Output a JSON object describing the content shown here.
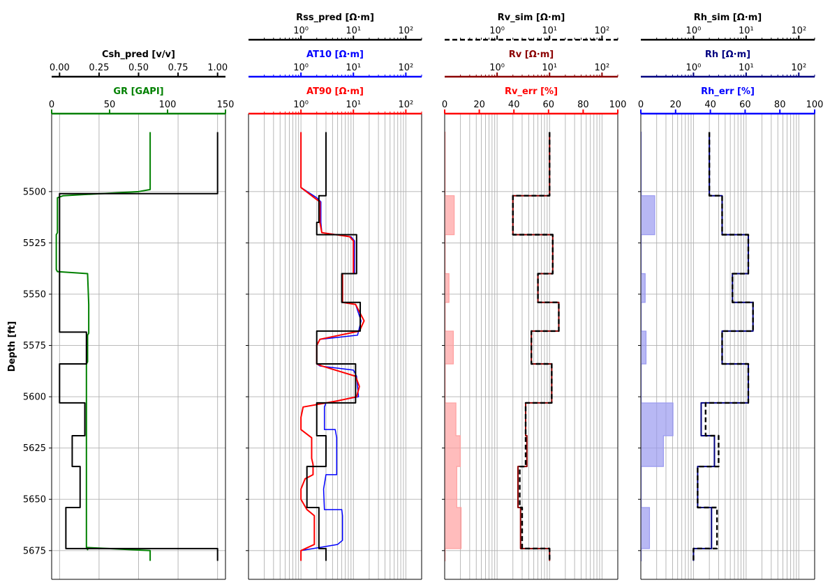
{
  "chart_data": {
    "type": "line",
    "y_axis": {
      "label": "Depth [ft]",
      "range": [
        5462,
        5689
      ],
      "inverted": true,
      "ticks": [
        5500,
        5525,
        5550,
        5575,
        5600,
        5625,
        5650,
        5675
      ]
    },
    "colors": {
      "green": "#008000",
      "black": "#000000",
      "red": "#ff0000",
      "blue": "#0000ff",
      "darkred": "#8b0000",
      "navy": "#000080",
      "grid": "#b0b0b0",
      "rv_fill": "#ffa0a0",
      "rh_fill": "#9a9af0"
    },
    "tracks": [
      {
        "id": "track1",
        "scales": [
          {
            "label": "GR [GAPI]",
            "color": "green",
            "type": "linear",
            "range": [
              0,
              150
            ],
            "ticks": [
              0,
              50,
              100,
              150
            ],
            "tick_labels": [
              "0",
              "50",
              "100",
              "150"
            ]
          },
          {
            "label": "Csh_pred [v/v]",
            "color": "black",
            "type": "linear",
            "range": [
              -0.05,
              1.05
            ],
            "ticks": [
              0,
              0.25,
              0.5,
              0.75,
              1.0
            ],
            "tick_labels": [
              "0.00",
              "0.25",
              "0.50",
              "0.75",
              "1.00"
            ]
          }
        ],
        "grid_x": [
          0,
          0.25,
          0.5,
          0.75,
          1.0
        ],
        "series": [
          {
            "name": "GR",
            "scale": 0,
            "color": "green",
            "width": 2,
            "x": [
              85,
              85,
              75,
              10,
              5,
              5,
              4,
              4,
              4,
              5,
              31,
              32,
              32,
              32,
              31,
              31,
              30,
              30,
              30,
              31,
              31,
              85,
              85
            ],
            "depth": [
              5471,
              5499,
              5500,
              5502,
              5503,
              5520,
              5521,
              5537,
              5538,
              5539,
              5540,
              5555,
              5559,
              5569,
              5570,
              5583,
              5584,
              5674,
              5673,
              5674.5,
              5673.5,
              5675,
              5680
            ]
          },
          {
            "name": "Csh_pred",
            "scale": 1,
            "color": "black",
            "width": 2,
            "x": [
              1.0,
              1.0,
              0.0,
              0.0,
              0.0,
              0.0,
              0.17,
              0.17,
              0.0,
              0.0,
              0.16,
              0.16,
              0.08,
              0.08,
              0.13,
              0.13,
              0.04,
              0.04,
              1.0,
              1.0
            ],
            "depth": [
              5471,
              5501,
              5501,
              5568,
              5568.5,
              5568.5,
              5568.5,
              5584,
              5584,
              5603,
              5603,
              5619,
              5619,
              5634,
              5634,
              5654,
              5654,
              5674,
              5674,
              5680
            ]
          }
        ]
      },
      {
        "id": "track2",
        "scales": [
          {
            "label": "AT90 [Ω·m]",
            "color": "red",
            "type": "log",
            "range": [
              0.1,
              200
            ],
            "ticks": [
              1,
              10,
              100
            ],
            "tick_labels": [
              "10⁰",
              "10¹",
              "10²"
            ]
          },
          {
            "label": "AT10 [Ω·m]",
            "color": "blue",
            "type": "log",
            "range": [
              0.1,
              200
            ],
            "ticks": [
              1,
              10,
              100
            ],
            "tick_labels": [
              "10⁰",
              "10¹",
              "10²"
            ]
          },
          {
            "label": "Rss_pred [Ω·m]",
            "color": "black",
            "type": "log",
            "range": [
              0.1,
              200
            ],
            "ticks": [
              1,
              10,
              100
            ],
            "tick_labels": [
              "10⁰",
              "10¹",
              "10²"
            ]
          }
        ],
        "log_grid": true,
        "series": [
          {
            "name": "AT10",
            "scale": 1,
            "color": "blue",
            "width": 1.5,
            "x": [
              1.0,
              1.0,
              1.0,
              2.0,
              2.4,
              2.4,
              2.5,
              9.0,
              10.5,
              10.5,
              10.5,
              6.2,
              6.2,
              6.2,
              11.0,
              14.0,
              12.0,
              2.3,
              2.0,
              2.0,
              2.3,
              10.0,
              11.5,
              12.5,
              3.0,
              2.8,
              2.8,
              4.5,
              4.8,
              4.8,
              3.0,
              2.7,
              2.8,
              6.0,
              6.2,
              6.2,
              5.0,
              1.0,
              1.0
            ],
            "depth": [
              5471,
              5495,
              5498,
              5503,
              5505,
              5515,
              5520,
              5522,
              5524,
              5540,
              5540,
              5540,
              5554,
              5554,
              5555,
              5563,
              5570,
              5572,
              5575,
              5584,
              5585,
              5587,
              5590,
              5600,
              5603,
              5605,
              5616,
              5616,
              5620,
              5638,
              5638,
              5645,
              5655,
              5655,
              5658,
              5670,
              5672,
              5675,
              5680
            ]
          },
          {
            "name": "AT90",
            "scale": 0,
            "color": "red",
            "width": 2,
            "x": [
              1.0,
              1.0,
              1.0,
              1.8,
              2.3,
              2.3,
              2.5,
              8.5,
              10.0,
              10.0,
              9.5,
              6.2,
              6.2,
              6.2,
              11.0,
              16.0,
              13.0,
              2.3,
              2.0,
              2.0,
              2.5,
              11.0,
              13.0,
              11.5,
              5.0,
              1.1,
              1.0,
              1.0,
              1.6,
              1.6,
              1.7,
              1.7,
              1.2,
              1.0,
              1.0,
              1.3,
              1.8,
              1.8,
              1.8,
              1.0,
              1.0
            ],
            "depth": [
              5471,
              5495,
              5498,
              5503,
              5505,
              5515,
              5520,
              5522,
              5524,
              5540,
              5540,
              5540,
              5554,
              5554,
              5555,
              5563,
              5568,
              5572,
              5575,
              5584,
              5585,
              5590,
              5595,
              5600,
              5602,
              5605,
              5610,
              5616,
              5620,
              5630,
              5633,
              5638,
              5640,
              5645,
              5650,
              5655,
              5658,
              5670,
              5672,
              5675,
              5680
            ]
          },
          {
            "name": "Rss_pred",
            "scale": 2,
            "color": "black",
            "width": 2,
            "x": [
              3.0,
              3.0,
              2.2,
              2.2,
              2.0,
              2.0,
              11.5,
              11.5,
              6.0,
              6.0,
              13.5,
              13.5,
              2.0,
              2.0,
              11.0,
              11.0,
              2.0,
              2.0,
              3.0,
              3.0,
              1.3,
              1.3,
              2.2,
              2.2,
              3.0,
              3.0
            ],
            "depth": [
              5471,
              5502,
              5502,
              5515,
              5515,
              5521,
              5521,
              5540,
              5540,
              5554,
              5554,
              5568,
              5568,
              5584,
              5584,
              5603,
              5603,
              5619,
              5619,
              5634,
              5634,
              5654,
              5654,
              5674,
              5674,
              5680
            ]
          }
        ]
      },
      {
        "id": "track3",
        "scales": [
          {
            "label": "Rv_err [%]",
            "color": "red",
            "type": "linear",
            "range": [
              0,
              100
            ],
            "ticks": [
              0,
              20,
              40,
              60,
              80,
              100
            ],
            "tick_labels": [
              "0",
              "20",
              "40",
              "60",
              "80",
              "100"
            ]
          },
          {
            "label": "Rv [Ω·m]",
            "color": "darkred",
            "type": "log",
            "range": [
              0.1,
              200
            ],
            "ticks": [
              1,
              10,
              100
            ],
            "tick_labels": [
              "10⁰",
              "10¹",
              "10²"
            ]
          },
          {
            "label": "Rv_sim [Ω·m]",
            "color": "black",
            "type": "log",
            "range": [
              0.1,
              200
            ],
            "dashed_axis": true,
            "ticks": [
              1,
              10,
              100
            ],
            "tick_labels": [
              "10⁰",
              "10¹",
              "10²"
            ]
          }
        ],
        "log_grid": true,
        "fill": {
          "name": "Rv_err",
          "scale": 0,
          "color": "rv_fill",
          "x": [
            0.3,
            0.3,
            5.5,
            5.5,
            0.3,
            0.3,
            2.5,
            2.5,
            0.3,
            0.3,
            5.0,
            5.0,
            0.3,
            0.3,
            6.5,
            6.5,
            9.0,
            9.0,
            7.0,
            7.0,
            9.5,
            9.5,
            0.3,
            0.3
          ],
          "depth": [
            5471,
            5502,
            5502,
            5521,
            5521,
            5540,
            5540,
            5554,
            5554,
            5568,
            5568,
            5584,
            5584,
            5603,
            5603,
            5619,
            5619,
            5634,
            5634,
            5654,
            5654,
            5674,
            5674,
            5680
          ]
        },
        "series": [
          {
            "name": "Rv",
            "scale": 1,
            "color": "darkred",
            "width": 2,
            "x": [
              10.0,
              10.0,
              2.0,
              2.0,
              11.5,
              11.5,
              6.0,
              6.0,
              15.0,
              15.0,
              4.5,
              4.5,
              11.0,
              11.0,
              3.5,
              3.5,
              3.7,
              3.7,
              2.5,
              2.5,
              2.8,
              2.8,
              10.0,
              10.0
            ],
            "depth": [
              5471,
              5502,
              5502,
              5521,
              5521,
              5540,
              5540,
              5554,
              5554,
              5568,
              5568,
              5584,
              5584,
              5603,
              5603,
              5619,
              5619,
              5634,
              5634,
              5654,
              5654,
              5674,
              5674,
              5680
            ]
          },
          {
            "name": "Rv_sim",
            "scale": 2,
            "color": "black",
            "width": 2.4,
            "dashed": true,
            "x": [
              10.0,
              10.0,
              2.0,
              2.0,
              11.5,
              11.5,
              6.0,
              6.0,
              15.0,
              15.0,
              4.5,
              4.5,
              11.0,
              11.0,
              3.5,
              3.5,
              3.5,
              3.5,
              2.7,
              2.7,
              3.0,
              3.0,
              10.0,
              10.0
            ],
            "depth": [
              5471,
              5502,
              5502,
              5521,
              5521,
              5540,
              5540,
              5554,
              5554,
              5568,
              5568,
              5584,
              5584,
              5603,
              5603,
              5619,
              5619,
              5634,
              5634,
              5654,
              5654,
              5674,
              5674,
              5680
            ]
          }
        ]
      },
      {
        "id": "track4",
        "scales": [
          {
            "label": "Rh_err [%]",
            "color": "blue",
            "type": "linear",
            "range": [
              0,
              100
            ],
            "ticks": [
              0,
              20,
              40,
              60,
              80,
              100
            ],
            "tick_labels": [
              "0",
              "20",
              "40",
              "60",
              "80",
              "100"
            ]
          },
          {
            "label": "Rh [Ω·m]",
            "color": "navy",
            "type": "log",
            "range": [
              0.1,
              200
            ],
            "ticks": [
              1,
              10,
              100
            ],
            "tick_labels": [
              "10⁰",
              "10¹",
              "10²"
            ]
          },
          {
            "label": "Rh_sim [Ω·m]",
            "color": "black",
            "type": "log",
            "range": [
              0.1,
              200
            ],
            "ticks": [
              1,
              10,
              100
            ],
            "tick_labels": [
              "10⁰",
              "10¹",
              "10²"
            ]
          }
        ],
        "log_grid": true,
        "fill": {
          "name": "Rh_err",
          "scale": 0,
          "color": "rh_fill",
          "x": [
            0.3,
            0.3,
            8.0,
            8.0,
            0.3,
            0.3,
            2.5,
            2.5,
            0.3,
            0.3,
            3.0,
            3.0,
            0.3,
            0.3,
            18.5,
            18.5,
            13.0,
            13.0,
            0.3,
            0.3,
            5.0,
            5.0,
            0.3,
            0.3
          ],
          "depth": [
            5471,
            5502,
            5502,
            5521,
            5521,
            5540,
            5540,
            5554,
            5554,
            5568,
            5568,
            5584,
            5584,
            5603,
            5603,
            5619,
            5619,
            5634,
            5634,
            5654,
            5654,
            5674,
            5674,
            5680
          ]
        },
        "series": [
          {
            "name": "Rh",
            "scale": 1,
            "color": "navy",
            "width": 2,
            "x": [
              2.0,
              2.0,
              3.5,
              3.5,
              11.0,
              11.0,
              5.5,
              5.5,
              13.5,
              13.5,
              3.5,
              3.5,
              11.0,
              11.0,
              1.4,
              1.4,
              2.5,
              2.5,
              1.2,
              1.2,
              2.2,
              2.2,
              1.0,
              1.0
            ],
            "depth": [
              5471,
              5502,
              5502,
              5521,
              5521,
              5540,
              5540,
              5554,
              5554,
              5568,
              5568,
              5584,
              5584,
              5603,
              5603,
              5619,
              5619,
              5634,
              5634,
              5654,
              5654,
              5674,
              5674,
              5680
            ]
          },
          {
            "name": "Rh_sim",
            "scale": 2,
            "color": "black",
            "width": 2.4,
            "dashed": true,
            "x": [
              2.0,
              2.0,
              3.5,
              3.5,
              11.0,
              11.0,
              5.5,
              5.5,
              13.5,
              13.5,
              3.5,
              3.5,
              11.0,
              11.0,
              1.7,
              1.7,
              3.0,
              3.0,
              1.2,
              1.2,
              2.8,
              2.8,
              1.0,
              1.0
            ],
            "depth": [
              5471,
              5502,
              5502,
              5521,
              5521,
              5540,
              5540,
              5554,
              5554,
              5568,
              5568,
              5584,
              5584,
              5603,
              5603,
              5619,
              5619,
              5634,
              5634,
              5654,
              5654,
              5674,
              5674,
              5680
            ]
          }
        ]
      }
    ]
  }
}
